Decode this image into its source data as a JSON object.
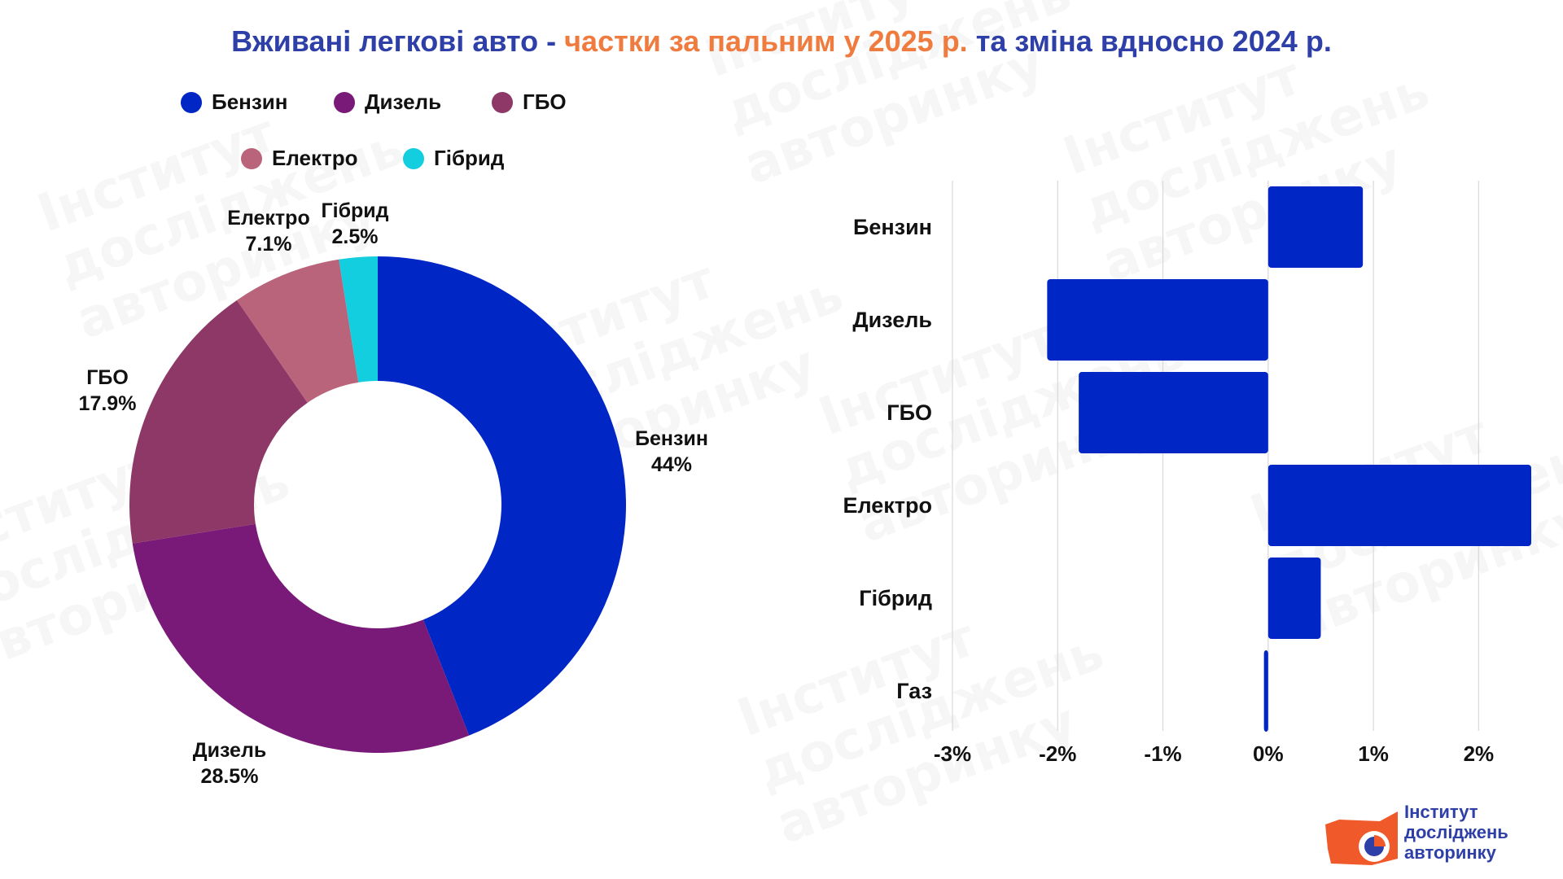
{
  "title": {
    "part1": "Вживані легкові авто - ",
    "part2": "частки за пальним у 2025 р.",
    "part3": " та зміна вдносно 2024 р."
  },
  "watermark_text": "Інститут\nдосліджень\nавторинку",
  "colors": {
    "title": "#2e3fa8",
    "accent": "#f07b3f",
    "bar": "#0026c6",
    "grid": "#d8d8d8"
  },
  "legend": [
    {
      "label": "Бензин",
      "color": "#0026c6"
    },
    {
      "label": "Дизель",
      "color": "#7a1a78"
    },
    {
      "label": "ГБО",
      "color": "#8e3868"
    },
    {
      "label": "Електро",
      "color": "#b9647a"
    },
    {
      "label": "Гібрид",
      "color": "#12cede"
    }
  ],
  "chart_data": [
    {
      "type": "pie",
      "donut": true,
      "title": "частки за пальним у 2025 р.",
      "slices": [
        {
          "label": "Бензин",
          "value": 44,
          "value_label": "44%",
          "color": "#0026c6"
        },
        {
          "label": "Дизель",
          "value": 28.5,
          "value_label": "28.5%",
          "color": "#7a1a78"
        },
        {
          "label": "ГБО",
          "value": 17.9,
          "value_label": "17.9%",
          "color": "#8e3868"
        },
        {
          "label": "Електро",
          "value": 7.1,
          "value_label": "7.1%",
          "color": "#b9647a"
        },
        {
          "label": "Гібрид",
          "value": 2.5,
          "value_label": "2.5%",
          "color": "#12cede"
        }
      ]
    },
    {
      "type": "bar",
      "orientation": "horizontal",
      "title": "зміна вдносно 2024 р.",
      "categories": [
        "Бензин",
        "Дизель",
        "ГБО",
        "Електро",
        "Гібрид",
        "Газ"
      ],
      "values": [
        0.9,
        -2.1,
        -1.8,
        2.5,
        0.5,
        -0.04
      ],
      "xlim": [
        -3,
        2.5
      ],
      "xticks": [
        -3,
        -2,
        -1,
        0,
        1,
        2
      ],
      "xtick_labels": [
        "-3%",
        "-2%",
        "-1%",
        "0%",
        "1%",
        "2%"
      ],
      "grid": true
    }
  ],
  "logo": {
    "line1": "Інститут",
    "line2": "досліджень",
    "line3": "авторинку"
  }
}
